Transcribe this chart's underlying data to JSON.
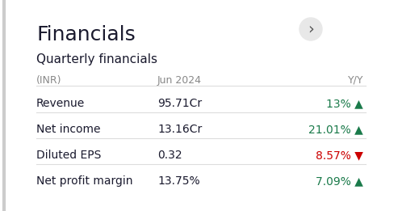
{
  "title": "Financials",
  "subtitle": "Quarterly financials",
  "header": [
    "(INR)",
    "Jun 2024",
    "Y/Y"
  ],
  "rows": [
    {
      "label": "Revenue",
      "value": "95.71Cr",
      "yoy": "13%",
      "arrow": "▲",
      "yoy_color": "#1a7a4a"
    },
    {
      "label": "Net income",
      "value": "13.16Cr",
      "yoy": "21.01%",
      "arrow": "▲",
      "yoy_color": "#1a7a4a"
    },
    {
      "label": "Diluted EPS",
      "value": "0.32",
      "yoy": "8.57%",
      "arrow": "▼",
      "yoy_color": "#cc0000"
    },
    {
      "label": "Net profit margin",
      "value": "13.75%",
      "yoy": "7.09%",
      "arrow": "▲",
      "yoy_color": "#1a7a4a"
    }
  ],
  "bg_color": "#ffffff",
  "title_color": "#1a1a2e",
  "subtitle_color": "#1a1a2e",
  "header_color": "#888888",
  "row_label_color": "#1a1a2e",
  "row_value_color": "#1a1a2e",
  "divider_color": "#dddddd",
  "button_color": "#e8e8e8",
  "button_text_color": "#555555"
}
